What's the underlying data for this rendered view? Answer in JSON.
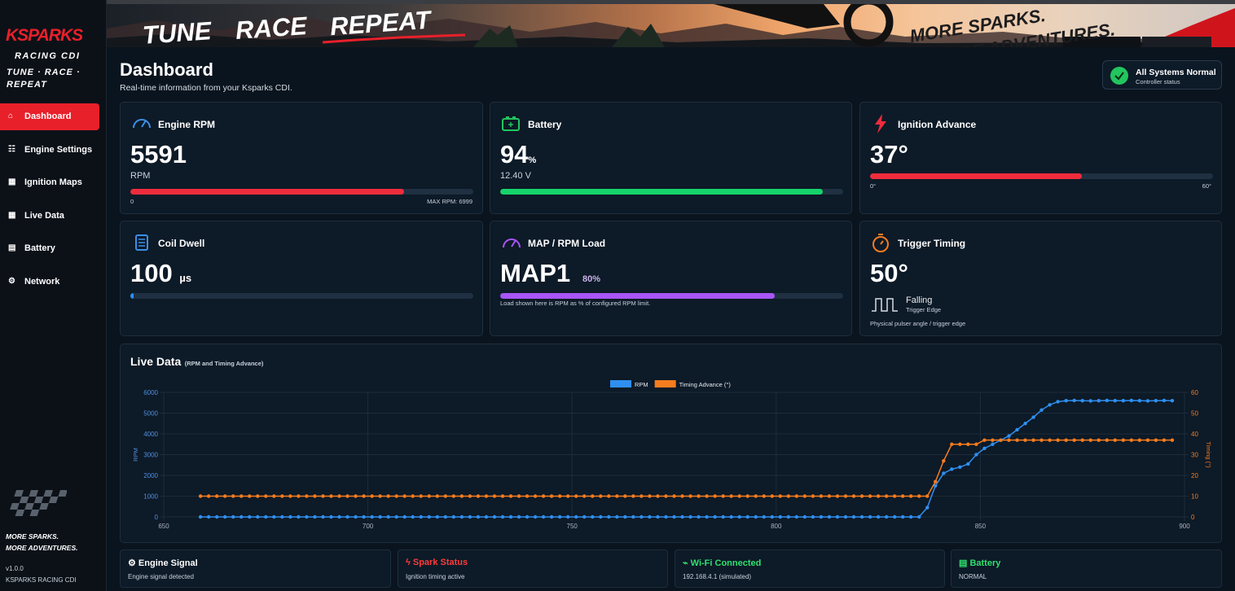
{
  "sidebar": {
    "brand": "KSPARKS",
    "subtitle": "RACING CDI",
    "tagline": "TUNE · RACE · REPEAT",
    "nav": [
      {
        "icon": "⌂",
        "label": "Dashboard"
      },
      {
        "icon": "☷",
        "label": "Engine Settings"
      },
      {
        "icon": "▦",
        "label": "Ignition Maps"
      },
      {
        "icon": "▦",
        "label": "Live Data"
      },
      {
        "icon": "▤",
        "label": "Battery"
      },
      {
        "icon": "⚙",
        "label": "Network"
      }
    ],
    "slogan_1": "MORE SPARKS.",
    "slogan_2": "MORE ADVENTURES.",
    "version": "v1.0.0",
    "product": "KSPARKS RACING CDI"
  },
  "banner": {
    "words": [
      "TUNE",
      "RACE",
      "REPEAT"
    ],
    "slogan_1": "MORE SPARKS.",
    "slogan_2": "MORE ADVENTURES."
  },
  "header": {
    "title": "Dashboard",
    "subtitle": "Real-time information from your Ksparks CDI.",
    "status": {
      "title": "All Systems Normal",
      "subtitle": "Controller status"
    }
  },
  "cards": {
    "rpm": {
      "title": "Engine RPM",
      "value": 5591,
      "unit": "RPM",
      "min": 0,
      "max": 6999,
      "max_prefix": "MAX RPM:"
    },
    "battery": {
      "title": "Battery",
      "value": 94,
      "unit": "%",
      "voltage": "12.40 V"
    },
    "ignition": {
      "title": "Ignition Advance",
      "value": 37,
      "unit": "°",
      "min": 0,
      "max": 60
    },
    "dwell": {
      "title": "Coil Dwell",
      "value": 100,
      "unit": "µs"
    },
    "load": {
      "title": "MAP / RPM Load",
      "map": "MAP1",
      "value": 80,
      "unit": "%",
      "note": "Load shown here is RPM as % of configured RPM limit."
    },
    "trigger": {
      "title": "Trigger Timing",
      "value": 50,
      "unit": "°",
      "edge": "Falling",
      "edge_label": "Trigger Edge",
      "note": "Physical pulser angle / trigger edge"
    }
  },
  "status_cards": [
    {
      "title": "⚙ Engine Signal",
      "detail": "Engine signal detected",
      "color": "#ffffff"
    },
    {
      "title": "ϟ Spark Status",
      "detail": "Ignition timing active",
      "color": "#ff3b3b"
    },
    {
      "title": "⌁ Wi-Fi Connected",
      "detail": "192.168.4.1 (simulated)",
      "color": "#2ee06e"
    },
    {
      "title": "▤ Battery",
      "detail": "NORMAL",
      "color": "#2ee06e"
    }
  ],
  "chart_data": {
    "type": "line",
    "title": "Live Data",
    "subtitle": "(RPM and Timing Advance)",
    "y_label": "RPM",
    "y2_label": "Timing (°)",
    "x": [
      659,
      661,
      663,
      665,
      667,
      669,
      671,
      673,
      675,
      677,
      679,
      681,
      683,
      685,
      687,
      689,
      691,
      693,
      695,
      697,
      699,
      701,
      703,
      705,
      707,
      709,
      711,
      713,
      715,
      717,
      719,
      721,
      723,
      725,
      727,
      729,
      731,
      733,
      735,
      737,
      739,
      741,
      743,
      745,
      747,
      749,
      751,
      753,
      755,
      757,
      759,
      761,
      763,
      765,
      767,
      769,
      771,
      773,
      775,
      777,
      779,
      781,
      783,
      785,
      787,
      789,
      791,
      793,
      795,
      797,
      799,
      801,
      803,
      805,
      807,
      809,
      811,
      813,
      815,
      817,
      819,
      821,
      823,
      825,
      827,
      829,
      831,
      833,
      835,
      837,
      839,
      841,
      843,
      845,
      847,
      849,
      851,
      853,
      855,
      857,
      859,
      861,
      863,
      865,
      867,
      869,
      871,
      873,
      875,
      877,
      879,
      881,
      883,
      885,
      887,
      889,
      891,
      893,
      895,
      897
    ],
    "series": [
      {
        "name": "RPM",
        "color": "#2f8ff0",
        "values": [
          0,
          0,
          0,
          0,
          0,
          0,
          0,
          0,
          0,
          0,
          0,
          0,
          0,
          0,
          0,
          0,
          0,
          0,
          0,
          0,
          0,
          0,
          0,
          0,
          0,
          0,
          0,
          0,
          0,
          0,
          0,
          0,
          0,
          0,
          0,
          0,
          0,
          0,
          0,
          0,
          0,
          0,
          0,
          0,
          0,
          0,
          0,
          0,
          0,
          0,
          0,
          0,
          0,
          0,
          0,
          0,
          0,
          0,
          0,
          0,
          0,
          0,
          0,
          0,
          0,
          0,
          0,
          0,
          0,
          0,
          0,
          0,
          0,
          0,
          0,
          0,
          0,
          0,
          0,
          0,
          0,
          0,
          0,
          0,
          0,
          0,
          0,
          0,
          0,
          450,
          1500,
          2100,
          2300,
          2400,
          2550,
          3000,
          3300,
          3500,
          3700,
          3900,
          4200,
          4500,
          4800,
          5150,
          5400,
          5550,
          5600,
          5610,
          5600,
          5590,
          5600,
          5610,
          5600,
          5600,
          5610,
          5600,
          5590,
          5600,
          5610,
          5600
        ]
      },
      {
        "name": "Timing Advance (°)",
        "color": "#f57c1f",
        "axis": "y2",
        "values": [
          10,
          10,
          10,
          10,
          10,
          10,
          10,
          10,
          10,
          10,
          10,
          10,
          10,
          10,
          10,
          10,
          10,
          10,
          10,
          10,
          10,
          10,
          10,
          10,
          10,
          10,
          10,
          10,
          10,
          10,
          10,
          10,
          10,
          10,
          10,
          10,
          10,
          10,
          10,
          10,
          10,
          10,
          10,
          10,
          10,
          10,
          10,
          10,
          10,
          10,
          10,
          10,
          10,
          10,
          10,
          10,
          10,
          10,
          10,
          10,
          10,
          10,
          10,
          10,
          10,
          10,
          10,
          10,
          10,
          10,
          10,
          10,
          10,
          10,
          10,
          10,
          10,
          10,
          10,
          10,
          10,
          10,
          10,
          10,
          10,
          10,
          10,
          10,
          10,
          10,
          17,
          27,
          35,
          35,
          35,
          35,
          37,
          37,
          37,
          37,
          37,
          37,
          37,
          37,
          37,
          37,
          37,
          37,
          37,
          37,
          37,
          37,
          37,
          37,
          37,
          37,
          37,
          37,
          37,
          37
        ]
      }
    ],
    "xlim": [
      650,
      900
    ],
    "xticks": [
      650,
      700,
      750,
      800,
      850,
      900
    ],
    "ylim": [
      0,
      6000
    ],
    "yticks": [
      0,
      1000,
      2000,
      3000,
      4000,
      5000,
      6000
    ],
    "y2lim": [
      0,
      60
    ],
    "y2ticks": [
      0,
      10,
      20,
      30,
      40,
      50,
      60
    ],
    "grid": true,
    "legend": "top"
  }
}
